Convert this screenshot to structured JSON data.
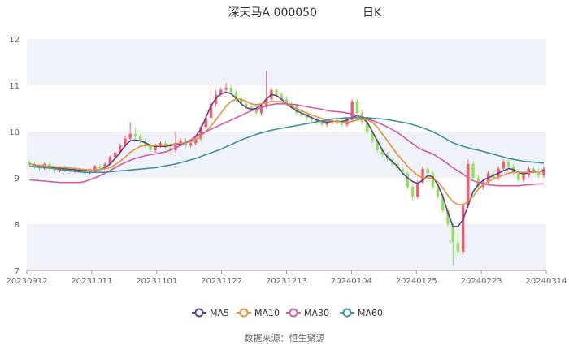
{
  "chart_data": {
    "type": "candlestick",
    "title": "深天马A 000050",
    "period_label": "日K",
    "source": "数据来源：恒生聚源",
    "y_ticks": [
      "7",
      "8",
      "9",
      "10",
      "11",
      "12"
    ],
    "ylim": [
      7,
      12
    ],
    "x_tick_labels": [
      "20230912",
      "20231011",
      "20231101",
      "20231122",
      "20231213",
      "20240104",
      "20240125",
      "20240223",
      "20240314"
    ],
    "grid": "horizontal bands",
    "legend_position": "bottom",
    "colors": {
      "up": "#f25c6e",
      "down": "#8fe35a",
      "band": "#f0f2fa",
      "axis": "#999999"
    },
    "legend": [
      {
        "name": "MA5",
        "color": "#5a3e8c"
      },
      {
        "name": "MA10",
        "color": "#e0923f"
      },
      {
        "name": "MA30",
        "color": "#d45aa8"
      },
      {
        "name": "MA60",
        "color": "#3f9396"
      }
    ],
    "ohlc": [
      [
        9.35,
        9.3,
        9.38,
        9.24
      ],
      [
        9.3,
        9.25,
        9.34,
        9.2
      ],
      [
        9.25,
        9.2,
        9.29,
        9.15
      ],
      [
        9.2,
        9.3,
        9.33,
        9.17
      ],
      [
        9.3,
        9.2,
        9.35,
        9.15
      ],
      [
        9.2,
        9.16,
        9.25,
        9.1
      ],
      [
        9.16,
        9.22,
        9.26,
        9.12
      ],
      [
        9.22,
        9.18,
        9.27,
        9.13
      ],
      [
        9.18,
        9.14,
        9.22,
        9.08
      ],
      [
        9.14,
        9.2,
        9.24,
        9.1
      ],
      [
        9.2,
        9.15,
        9.24,
        9.1
      ],
      [
        9.15,
        9.1,
        9.19,
        9.05
      ],
      [
        9.1,
        9.16,
        9.2,
        9.06
      ],
      [
        9.16,
        9.25,
        9.28,
        9.12
      ],
      [
        9.25,
        9.2,
        9.3,
        9.15
      ],
      [
        9.2,
        9.3,
        9.33,
        9.17
      ],
      [
        9.3,
        9.45,
        9.48,
        9.27
      ],
      [
        9.45,
        9.55,
        9.6,
        9.41
      ],
      [
        9.55,
        9.7,
        9.74,
        9.5
      ],
      [
        9.7,
        9.85,
        9.9,
        9.65
      ],
      [
        9.85,
        9.95,
        10.2,
        9.8
      ],
      [
        9.95,
        9.9,
        10.08,
        9.85
      ],
      [
        9.9,
        9.8,
        9.95,
        9.75
      ],
      [
        9.8,
        9.7,
        9.85,
        9.65
      ],
      [
        9.7,
        9.6,
        9.75,
        9.55
      ],
      [
        9.6,
        9.7,
        9.74,
        9.55
      ],
      [
        9.7,
        9.75,
        9.79,
        9.65
      ],
      [
        9.75,
        9.65,
        9.8,
        9.6
      ],
      [
        9.65,
        9.6,
        9.7,
        9.55
      ],
      [
        9.6,
        9.75,
        10.0,
        9.55
      ],
      [
        9.75,
        9.8,
        9.85,
        9.7
      ],
      [
        9.8,
        9.7,
        9.85,
        9.65
      ],
      [
        9.7,
        9.75,
        9.79,
        9.65
      ],
      [
        9.75,
        9.85,
        9.9,
        9.7
      ],
      [
        9.85,
        10.1,
        10.15,
        9.8
      ],
      [
        10.1,
        10.3,
        10.35,
        10.05
      ],
      [
        10.3,
        10.6,
        11.05,
        10.25
      ],
      [
        10.6,
        10.8,
        10.9,
        10.55
      ],
      [
        10.8,
        10.9,
        10.95,
        10.75
      ],
      [
        10.9,
        10.95,
        11.05,
        10.85
      ],
      [
        10.95,
        10.85,
        11.0,
        10.8
      ],
      [
        10.85,
        10.7,
        10.9,
        10.65
      ],
      [
        10.7,
        10.6,
        10.75,
        10.55
      ],
      [
        10.6,
        10.55,
        10.65,
        10.5
      ],
      [
        10.55,
        10.5,
        10.6,
        10.45
      ],
      [
        10.5,
        10.4,
        10.55,
        10.35
      ],
      [
        10.4,
        10.55,
        10.6,
        10.35
      ],
      [
        10.55,
        10.7,
        11.3,
        10.5
      ],
      [
        10.7,
        10.9,
        10.95,
        10.65
      ],
      [
        10.9,
        10.8,
        10.95,
        10.75
      ],
      [
        10.8,
        10.7,
        10.85,
        10.65
      ],
      [
        10.7,
        10.6,
        10.75,
        10.55
      ],
      [
        10.6,
        10.55,
        10.65,
        10.5
      ],
      [
        10.55,
        10.4,
        10.6,
        10.35
      ],
      [
        10.4,
        10.35,
        10.45,
        10.3
      ],
      [
        10.35,
        10.3,
        10.4,
        10.25
      ],
      [
        10.3,
        10.25,
        10.35,
        10.2
      ],
      [
        10.25,
        10.2,
        10.3,
        10.15
      ],
      [
        10.2,
        10.15,
        10.25,
        10.1
      ],
      [
        10.15,
        10.2,
        10.24,
        10.1
      ],
      [
        10.2,
        10.25,
        10.3,
        10.15
      ],
      [
        10.25,
        10.2,
        10.3,
        10.15
      ],
      [
        10.2,
        10.15,
        10.25,
        10.1
      ],
      [
        10.15,
        10.25,
        10.29,
        10.1
      ],
      [
        10.25,
        10.65,
        10.7,
        10.2
      ],
      [
        10.65,
        10.4,
        10.7,
        10.35
      ],
      [
        10.4,
        10.2,
        10.45,
        10.15
      ],
      [
        10.2,
        10.0,
        10.25,
        9.95
      ],
      [
        10.0,
        9.8,
        10.05,
        9.75
      ],
      [
        9.8,
        9.6,
        9.85,
        9.55
      ],
      [
        9.6,
        9.5,
        9.65,
        9.45
      ],
      [
        9.5,
        9.4,
        9.55,
        9.35
      ],
      [
        9.4,
        9.3,
        9.45,
        9.25
      ],
      [
        9.3,
        9.2,
        9.35,
        9.15
      ],
      [
        9.2,
        9.1,
        9.25,
        9.05
      ],
      [
        9.1,
        8.8,
        9.15,
        8.75
      ],
      [
        8.8,
        8.6,
        8.85,
        8.5
      ],
      [
        8.6,
        8.9,
        8.95,
        8.55
      ],
      [
        8.9,
        9.2,
        9.25,
        8.85
      ],
      [
        9.2,
        9.1,
        9.25,
        9.05
      ],
      [
        9.1,
        8.8,
        9.15,
        8.75
      ],
      [
        8.8,
        8.6,
        8.85,
        8.55
      ],
      [
        8.6,
        8.3,
        8.65,
        8.25
      ],
      [
        8.3,
        8.0,
        8.35,
        7.95
      ],
      [
        8.0,
        7.6,
        8.05,
        7.1
      ],
      [
        7.6,
        7.4,
        7.9,
        7.3
      ],
      [
        7.4,
        8.4,
        8.45,
        7.35
      ],
      [
        8.4,
        9.3,
        9.4,
        8.35
      ],
      [
        9.3,
        9.0,
        9.35,
        8.95
      ],
      [
        9.0,
        8.8,
        9.05,
        8.75
      ],
      [
        8.8,
        8.9,
        8.95,
        8.75
      ],
      [
        8.9,
        9.1,
        9.15,
        8.85
      ],
      [
        9.1,
        9.0,
        9.15,
        8.95
      ],
      [
        9.0,
        9.2,
        9.25,
        8.95
      ],
      [
        9.2,
        9.35,
        9.4,
        9.15
      ],
      [
        9.35,
        9.25,
        9.4,
        9.2
      ],
      [
        9.25,
        9.1,
        9.3,
        9.05
      ],
      [
        9.1,
        8.95,
        9.15,
        8.9
      ],
      [
        8.95,
        9.05,
        9.1,
        8.9
      ],
      [
        9.05,
        9.2,
        9.25,
        9.0
      ],
      [
        9.2,
        9.15,
        9.25,
        9.1
      ],
      [
        9.15,
        9.05,
        9.2,
        9.0
      ],
      [
        9.05,
        9.2,
        9.25,
        9.0
      ]
    ],
    "ma5": [
      9.3,
      9.28,
      9.25,
      9.24,
      9.25,
      9.22,
      9.21,
      9.2,
      9.18,
      9.18,
      9.17,
      9.16,
      9.15,
      9.17,
      9.18,
      9.22,
      9.3,
      9.42,
      9.55,
      9.7,
      9.8,
      9.82,
      9.8,
      9.76,
      9.7,
      9.68,
      9.68,
      9.68,
      9.7,
      9.72,
      9.74,
      9.76,
      9.8,
      9.9,
      10.05,
      10.3,
      10.55,
      10.72,
      10.82,
      10.85,
      10.82,
      10.72,
      10.6,
      10.52,
      10.48,
      10.5,
      10.58,
      10.7,
      10.8,
      10.78,
      10.7,
      10.6,
      10.52,
      10.45,
      10.4,
      10.35,
      10.3,
      10.25,
      10.22,
      10.2,
      10.22,
      10.22,
      10.22,
      10.25,
      10.3,
      10.35,
      10.3,
      10.2,
      10.0,
      9.8,
      9.6,
      9.45,
      9.35,
      9.25,
      9.1,
      9.0,
      8.92,
      8.88,
      8.95,
      9.05,
      9.02,
      8.85,
      8.6,
      8.25,
      7.95,
      7.95,
      8.1,
      8.4,
      8.7,
      8.85,
      8.95,
      9.0,
      9.05,
      9.1,
      9.15,
      9.2,
      9.18,
      9.12,
      9.08,
      9.12,
      9.15,
      9.14,
      9.16
    ],
    "ma10": [
      9.3,
      9.28,
      9.27,
      9.26,
      9.25,
      9.24,
      9.23,
      9.22,
      9.21,
      9.2,
      9.19,
      9.18,
      9.17,
      9.17,
      9.18,
      9.2,
      9.22,
      9.28,
      9.36,
      9.45,
      9.55,
      9.62,
      9.68,
      9.7,
      9.7,
      9.7,
      9.7,
      9.7,
      9.72,
      9.74,
      9.75,
      9.76,
      9.78,
      9.82,
      9.9,
      10.0,
      10.12,
      10.25,
      10.4,
      10.55,
      10.65,
      10.7,
      10.7,
      10.65,
      10.6,
      10.58,
      10.6,
      10.62,
      10.65,
      10.65,
      10.64,
      10.6,
      10.55,
      10.5,
      10.45,
      10.4,
      10.36,
      10.32,
      10.28,
      10.25,
      10.23,
      10.22,
      10.2,
      10.2,
      10.22,
      10.25,
      10.27,
      10.26,
      10.2,
      10.1,
      9.95,
      9.8,
      9.65,
      9.5,
      9.38,
      9.25,
      9.15,
      9.05,
      9.0,
      9.0,
      8.98,
      8.92,
      8.78,
      8.62,
      8.48,
      8.42,
      8.42,
      8.48,
      8.6,
      8.75,
      8.85,
      8.92,
      8.98,
      9.02,
      9.06,
      9.1,
      9.12,
      9.12,
      9.12,
      9.12,
      9.12,
      9.13,
      9.14
    ],
    "ma30": [
      8.96,
      8.95,
      8.94,
      8.93,
      8.92,
      8.91,
      8.9,
      8.9,
      8.9,
      8.9,
      8.9,
      8.92,
      8.96,
      9.0,
      9.05,
      9.1,
      9.16,
      9.22,
      9.28,
      9.33,
      9.38,
      9.42,
      9.45,
      9.48,
      9.5,
      9.52,
      9.54,
      9.56,
      9.6,
      9.65,
      9.7,
      9.76,
      9.82,
      9.88,
      9.95,
      10.0,
      10.05,
      10.1,
      10.15,
      10.2,
      10.25,
      10.3,
      10.35,
      10.4,
      10.45,
      10.48,
      10.52,
      10.55,
      10.58,
      10.6,
      10.6,
      10.6,
      10.59,
      10.58,
      10.56,
      10.54,
      10.52,
      10.5,
      10.48,
      10.46,
      10.44,
      10.43,
      10.42,
      10.4,
      10.38,
      10.35,
      10.32,
      10.28,
      10.24,
      10.2,
      10.15,
      10.1,
      10.04,
      9.98,
      9.9,
      9.82,
      9.74,
      9.66,
      9.6,
      9.56,
      9.52,
      9.45,
      9.38,
      9.3,
      9.22,
      9.15,
      9.08,
      9.0,
      8.94,
      8.9,
      8.87,
      8.85,
      8.84,
      8.83,
      8.83,
      8.83,
      8.83,
      8.83,
      8.84,
      8.85,
      8.86,
      8.87,
      8.87
    ],
    "ma60": [
      9.25,
      9.24,
      9.23,
      9.22,
      9.21,
      9.2,
      9.18,
      9.17,
      9.15,
      9.14,
      9.13,
      9.12,
      9.12,
      9.12,
      9.12,
      9.12,
      9.13,
      9.14,
      9.15,
      9.16,
      9.17,
      9.18,
      9.19,
      9.2,
      9.21,
      9.22,
      9.24,
      9.26,
      9.28,
      9.3,
      9.33,
      9.36,
      9.39,
      9.42,
      9.46,
      9.5,
      9.54,
      9.58,
      9.62,
      9.67,
      9.72,
      9.77,
      9.82,
      9.86,
      9.9,
      9.94,
      9.97,
      10.0,
      10.03,
      10.05,
      10.07,
      10.09,
      10.11,
      10.13,
      10.15,
      10.17,
      10.19,
      10.21,
      10.23,
      10.25,
      10.27,
      10.28,
      10.29,
      10.3,
      10.3,
      10.3,
      10.3,
      10.3,
      10.29,
      10.28,
      10.27,
      10.26,
      10.24,
      10.22,
      10.2,
      10.18,
      10.15,
      10.12,
      10.08,
      10.04,
      10.0,
      9.94,
      9.88,
      9.82,
      9.76,
      9.72,
      9.68,
      9.65,
      9.62,
      9.6,
      9.57,
      9.54,
      9.51,
      9.48,
      9.45,
      9.42,
      9.4,
      9.38,
      9.36,
      9.35,
      9.34,
      9.33,
      9.32
    ]
  }
}
